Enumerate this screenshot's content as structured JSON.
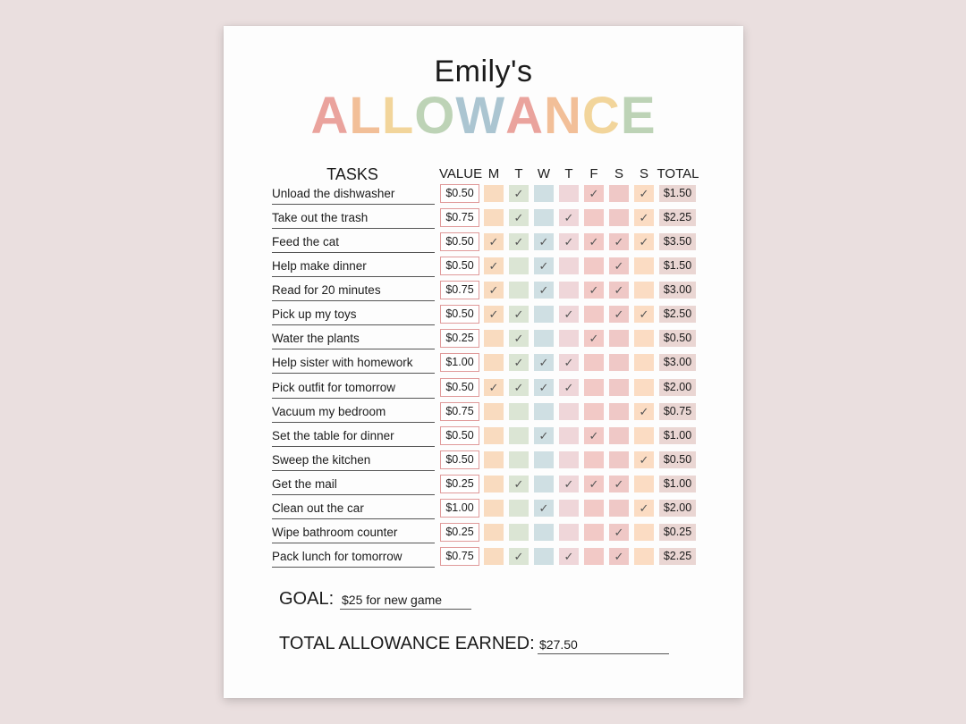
{
  "header": {
    "owner": "Emily's",
    "title": "ALLOWANCE",
    "title_letter_colors": [
      "#eaa39d",
      "#f2bf98",
      "#f2d59b",
      "#bdd3b6",
      "#abc5d1",
      "#eaa39d",
      "#f2bf98",
      "#f2d59b",
      "#bdd3b6"
    ]
  },
  "columns": {
    "tasks": "TASKS",
    "value": "VALUE",
    "days": [
      "M",
      "T",
      "W",
      "T",
      "F",
      "S",
      "S"
    ],
    "total": "TOTAL"
  },
  "day_colors": [
    "#f9dbbf",
    "#dbe5d4",
    "#cfdfe3",
    "#efd6d9",
    "#f2c9c6",
    "#efc8c6",
    "#fbdcc3"
  ],
  "check_mark": "✓",
  "tasks": [
    {
      "name": "Unload the dishwasher",
      "value": "$0.50",
      "days": [
        false,
        true,
        false,
        false,
        true,
        false,
        true
      ],
      "total": "$1.50"
    },
    {
      "name": "Take out the trash",
      "value": "$0.75",
      "days": [
        false,
        true,
        false,
        true,
        false,
        false,
        true
      ],
      "total": "$2.25"
    },
    {
      "name": "Feed the cat",
      "value": "$0.50",
      "days": [
        true,
        true,
        true,
        true,
        true,
        true,
        true
      ],
      "total": "$3.50"
    },
    {
      "name": "Help make dinner",
      "value": "$0.50",
      "days": [
        true,
        false,
        true,
        false,
        false,
        true,
        false
      ],
      "total": "$1.50"
    },
    {
      "name": "Read for 20 minutes",
      "value": "$0.75",
      "days": [
        true,
        false,
        true,
        false,
        true,
        true,
        false
      ],
      "total": "$3.00"
    },
    {
      "name": "Pick up my toys",
      "value": "$0.50",
      "days": [
        true,
        true,
        false,
        true,
        false,
        true,
        true
      ],
      "total": "$2.50"
    },
    {
      "name": "Water the plants",
      "value": "$0.25",
      "days": [
        false,
        true,
        false,
        false,
        true,
        false,
        false
      ],
      "total": "$0.50"
    },
    {
      "name": "Help sister with homework",
      "value": "$1.00",
      "days": [
        false,
        true,
        true,
        true,
        false,
        false,
        false
      ],
      "total": "$3.00"
    },
    {
      "name": "Pick outfit for tomorrow",
      "value": "$0.50",
      "days": [
        true,
        true,
        true,
        true,
        false,
        false,
        false
      ],
      "total": "$2.00"
    },
    {
      "name": "Vacuum my bedroom",
      "value": "$0.75",
      "days": [
        false,
        false,
        false,
        false,
        false,
        false,
        true
      ],
      "total": "$0.75"
    },
    {
      "name": "Set the table for dinner",
      "value": "$0.50",
      "days": [
        false,
        false,
        true,
        false,
        true,
        false,
        false
      ],
      "total": "$1.00"
    },
    {
      "name": "Sweep the kitchen",
      "value": "$0.50",
      "days": [
        false,
        false,
        false,
        false,
        false,
        false,
        true
      ],
      "total": "$0.50"
    },
    {
      "name": "Get the mail",
      "value": "$0.25",
      "days": [
        false,
        true,
        false,
        true,
        true,
        true,
        false
      ],
      "total": "$1.00"
    },
    {
      "name": "Clean out the car",
      "value": "$1.00",
      "days": [
        false,
        false,
        true,
        false,
        false,
        false,
        true
      ],
      "total": "$2.00"
    },
    {
      "name": "Wipe bathroom counter",
      "value": "$0.25",
      "days": [
        false,
        false,
        false,
        false,
        false,
        true,
        false
      ],
      "total": "$0.25"
    },
    {
      "name": "Pack lunch for tomorrow",
      "value": "$0.75",
      "days": [
        false,
        true,
        false,
        true,
        false,
        true,
        false
      ],
      "total": "$2.25"
    }
  ],
  "goal": {
    "label": "GOAL:",
    "value": "$25 for new game"
  },
  "total_earned": {
    "label": "TOTAL ALLOWANCE EARNED:",
    "value": "$27.50"
  }
}
